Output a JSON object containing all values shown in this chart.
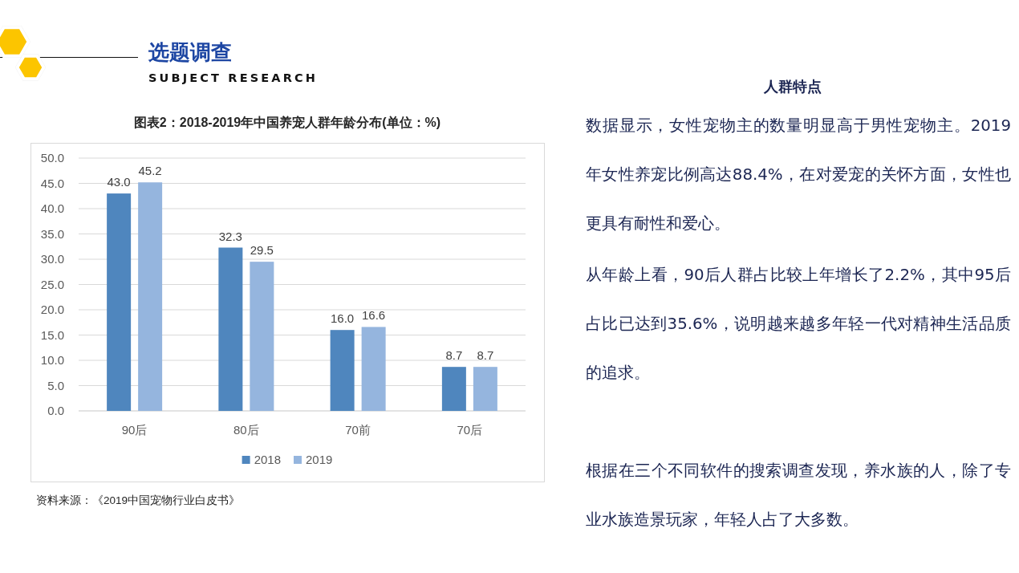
{
  "chart_data": [
    {
      "type": "bar",
      "title": "图表2：2018-2019年中国养宠人群年龄分布(单位：%)",
      "categories": [
        "90后",
        "80后",
        "70前",
        "70后"
      ],
      "series": [
        {
          "name": "2018",
          "color": "#4f86be",
          "values": [
            43.0,
            32.3,
            16.0,
            8.7
          ],
          "value_labels": [
            "43.0",
            "32.3",
            "16.0",
            "8.7"
          ]
        },
        {
          "name": "2019",
          "color": "#95b5de",
          "values": [
            45.2,
            29.5,
            16.6,
            8.7
          ],
          "value_labels": [
            "45.2",
            "29.5",
            "16.6",
            "8.7"
          ]
        }
      ],
      "ylim": [
        0,
        50
      ],
      "yticks": [
        {
          "value": 0,
          "label": "0.0"
        },
        {
          "value": 5,
          "label": "5.0"
        },
        {
          "value": 10,
          "label": "10.0"
        },
        {
          "value": 15,
          "label": "15.0"
        },
        {
          "value": 20,
          "label": "20.0"
        },
        {
          "value": 25,
          "label": "25.0"
        },
        {
          "value": 30,
          "label": "30.0"
        },
        {
          "value": 35,
          "label": "35.0"
        },
        {
          "value": 40,
          "label": "40.0"
        },
        {
          "value": 45,
          "label": "45.0"
        },
        {
          "value": 50,
          "label": "50.0"
        }
      ],
      "grid": "y",
      "legend": "bottom",
      "annotations": [
        "选题调查",
        "SUBJECT RESEARCH",
        "资料来源：《2019中国宠物行业白皮书》"
      ]
    },
    {
      "type": "other",
      "title": "人群特点",
      "annotations": [
        "数据显示，女性宠物主的数量明显高于男性宠物主。2019年女性养宠比例高达88.4%，在对爱宠的关怀方面，女性也更具有耐性和爱心。",
        "从年龄上看，90后人群占比较上年增长了2.2%，其中95后占比已达到35.6%，说明越来越多年轻一代对精神生活品质的追求。",
        "根据在三个不同软件的搜索调查发现，养水族的人，除了专业水族造景玩家，年轻人占了大多数。"
      ]
    }
  ]
}
